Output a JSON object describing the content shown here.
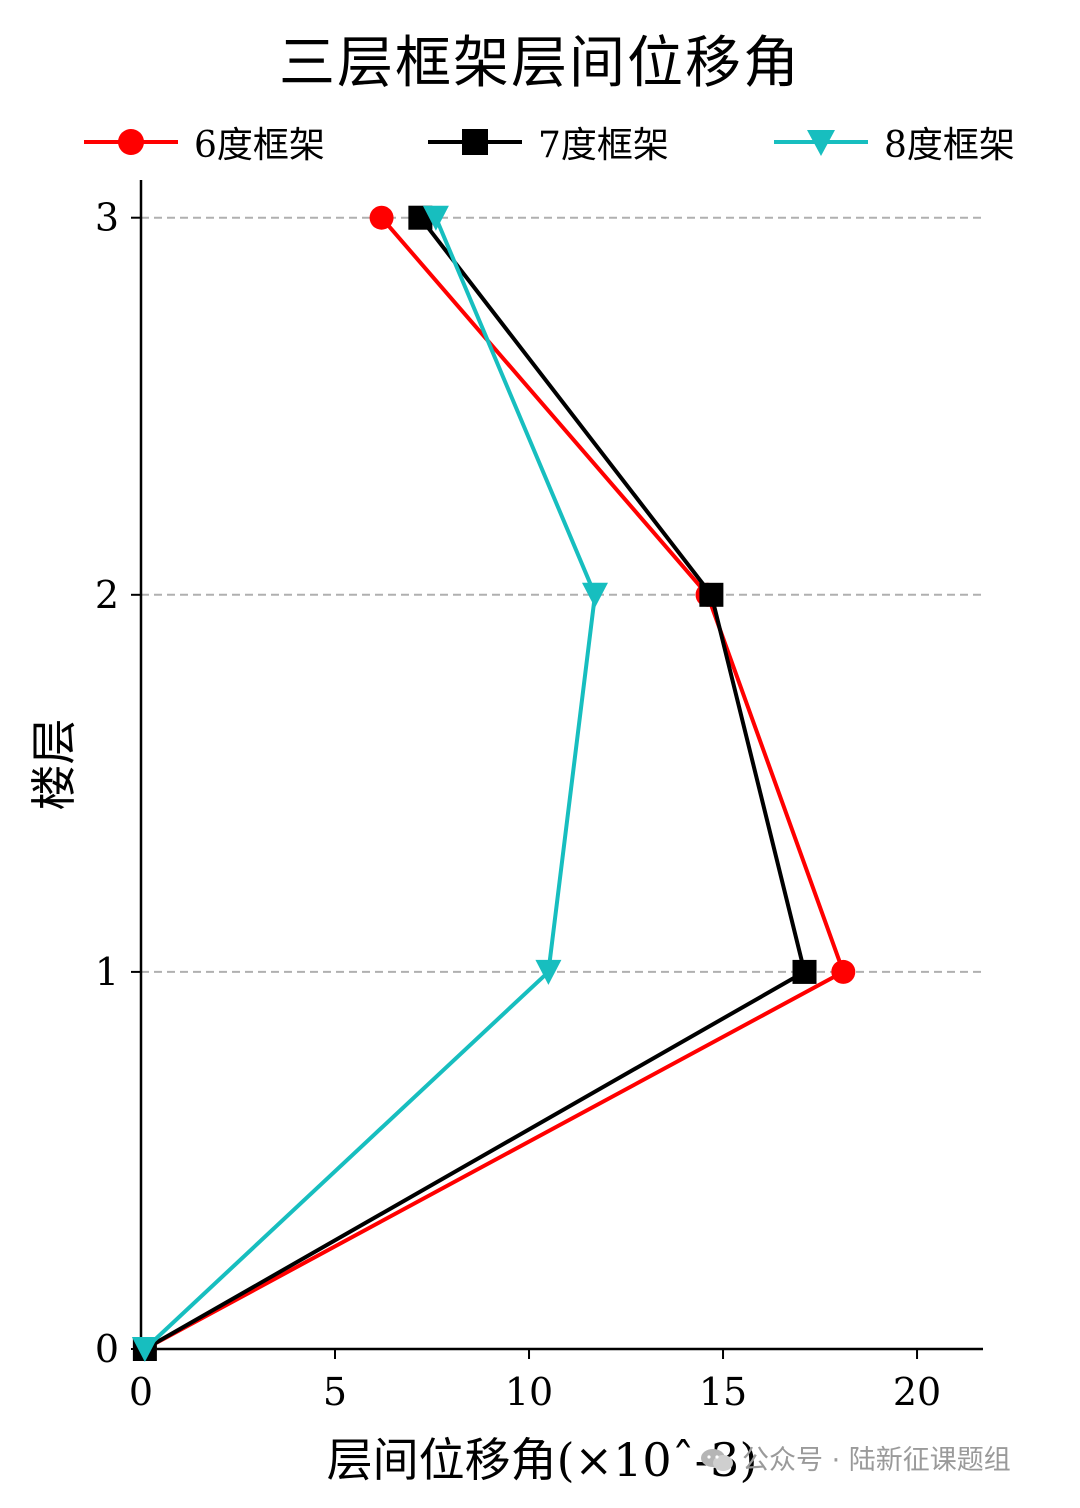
{
  "chart_data": {
    "type": "line",
    "title": "三层框架层间位移角",
    "xlabel": "层间位移角(×10ˆ-3)",
    "ylabel": "楼层",
    "xlim": [
      0,
      21.7
    ],
    "ylim": [
      0,
      3.1
    ],
    "xticks": [
      0,
      5,
      10,
      15,
      20
    ],
    "yticks": [
      0,
      1,
      2,
      3
    ],
    "grid": "horizontal dashed at floors 1–3",
    "legend_position": "top, single row",
    "series": [
      {
        "name": "6度框架",
        "color": "#ff0000",
        "marker": "circle",
        "points": [
          [
            0.1,
            0
          ],
          [
            18.1,
            1
          ],
          [
            14.6,
            2
          ],
          [
            6.2,
            3
          ]
        ]
      },
      {
        "name": "7度框架",
        "color": "#000000",
        "marker": "square",
        "points": [
          [
            0.1,
            0
          ],
          [
            17.1,
            1
          ],
          [
            14.7,
            2
          ],
          [
            7.2,
            3
          ]
        ]
      },
      {
        "name": "8度框架",
        "color": "#17bebf",
        "marker": "triangle-down",
        "points": [
          [
            0.1,
            0
          ],
          [
            10.5,
            1
          ],
          [
            11.7,
            2
          ],
          [
            7.6,
            3
          ]
        ]
      }
    ]
  },
  "watermark": {
    "text": "公众号 · 陆新征课题组",
    "icon": "wechat-icon"
  }
}
